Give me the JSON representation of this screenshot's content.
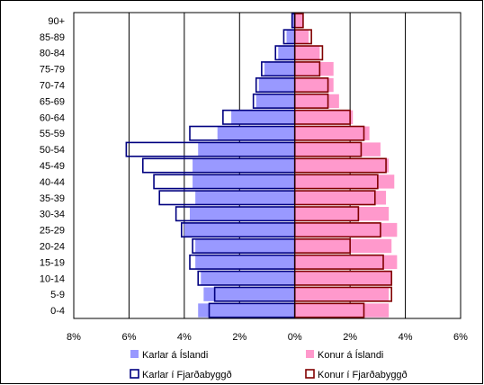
{
  "chart_data": {
    "type": "bar",
    "orientation": "horizontal",
    "layout": "population-pyramid",
    "categories": [
      "0-4",
      "5-9",
      "10-14",
      "15-19",
      "20-24",
      "25-29",
      "30-34",
      "35-39",
      "40-44",
      "45-49",
      "50-54",
      "55-59",
      "60-64",
      "65-69",
      "70-74",
      "75-79",
      "80-84",
      "85-89",
      "90+"
    ],
    "x_ticks": [
      -8,
      -6,
      -4,
      -2,
      0,
      2,
      4,
      6
    ],
    "x_tick_labels": [
      "8%",
      "6%",
      "4%",
      "2%",
      "0%",
      "2%",
      "4%",
      "6%"
    ],
    "xlim": [
      -8,
      6
    ],
    "grid": true,
    "legend_position": "bottom",
    "series": [
      {
        "name": "Karlar á Íslandi",
        "side": "left",
        "style": "filled",
        "color": "#9999ff",
        "values": [
          3.5,
          3.3,
          3.4,
          3.6,
          3.6,
          4.0,
          3.8,
          3.6,
          3.7,
          3.7,
          3.5,
          2.8,
          2.3,
          1.4,
          1.3,
          1.1,
          0.6,
          0.3,
          0.1
        ]
      },
      {
        "name": "Konur á Íslandi",
        "side": "right",
        "style": "filled",
        "color": "#ff99cc",
        "values": [
          3.4,
          3.4,
          3.5,
          3.7,
          3.5,
          3.7,
          3.4,
          3.3,
          3.6,
          3.4,
          3.1,
          2.7,
          2.1,
          1.6,
          1.4,
          1.4,
          0.9,
          0.5,
          0.3
        ]
      },
      {
        "name": "Karlar í Fjarðabyggð",
        "side": "left",
        "style": "outline",
        "color": "#000080",
        "values": [
          3.1,
          2.9,
          3.5,
          3.8,
          3.7,
          4.1,
          4.3,
          4.9,
          5.1,
          5.5,
          6.1,
          3.8,
          2.6,
          1.5,
          1.4,
          1.2,
          0.7,
          0.4,
          0.1
        ]
      },
      {
        "name": "Konur í Fjarðabyggð",
        "side": "right",
        "style": "outline",
        "color": "#800000",
        "values": [
          2.5,
          3.5,
          3.5,
          3.2,
          2.0,
          3.1,
          2.3,
          2.9,
          3.0,
          3.3,
          2.4,
          2.5,
          2.0,
          1.2,
          1.2,
          0.9,
          1.0,
          0.6,
          0.3
        ]
      }
    ]
  }
}
